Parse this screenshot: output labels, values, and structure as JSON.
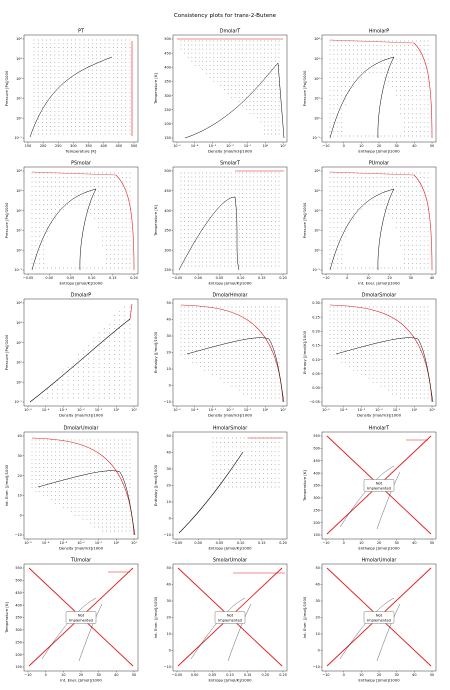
{
  "suptitle": "Consistency plots for trans-2-Butene",
  "chart_data": [
    {
      "type": "scatter",
      "title": "PT",
      "xlabel": "Temperature [K]",
      "ylabel": "Pressure [Pa]/1000",
      "xticks": [
        "150",
        "200",
        "250",
        "300",
        "350",
        "400",
        "450",
        "500"
      ],
      "yticks": [
        "10⁻¹",
        "10⁰",
        "10¹",
        "10²",
        "10³",
        "10⁴"
      ],
      "not_implemented": false
    },
    {
      "type": "scatter",
      "title": "DmolarT",
      "xlabel": "Density [mol/m3]/1000",
      "ylabel": "Temperature [K]",
      "xticks": [
        "10⁻⁵",
        "10⁻⁴",
        "10⁻³",
        "10⁻²",
        "10⁻¹",
        "10⁰",
        "10¹"
      ],
      "yticks": [
        "150",
        "200",
        "250",
        "300",
        "350",
        "400",
        "450",
        "500"
      ],
      "not_implemented": false
    },
    {
      "type": "scatter",
      "title": "HmolarP",
      "xlabel": "Enthalpy [J/mol]/1000",
      "ylabel": "Pressure [Pa]/1000",
      "xticks": [
        "−10",
        "0",
        "10",
        "20",
        "30",
        "40",
        "50"
      ],
      "yticks": [
        "10⁻¹",
        "10⁰",
        "10¹",
        "10²",
        "10³",
        "10⁴"
      ],
      "not_implemented": false
    },
    {
      "type": "scatter",
      "title": "PSmolar",
      "xlabel": "Entropy [J/mol/K]/1000",
      "ylabel": "Pressure [Pa]/1000",
      "xticks": [
        "−0.05",
        "0.00",
        "0.05",
        "0.10",
        "0.15",
        "0.20"
      ],
      "yticks": [
        "10⁻¹",
        "10⁰",
        "10¹",
        "10²",
        "10³",
        "10⁴"
      ],
      "not_implemented": false
    },
    {
      "type": "scatter",
      "title": "SmolarT",
      "xlabel": "Entropy [J/mol/K]/1000",
      "ylabel": "Temperature [K]",
      "xticks": [
        "−0.05",
        "0.00",
        "0.05",
        "0.10",
        "0.15",
        "0.20"
      ],
      "yticks": [
        "250",
        "300",
        "350",
        "400",
        "450",
        "500"
      ],
      "not_implemented": false
    },
    {
      "type": "scatter",
      "title": "PUmolar",
      "xlabel": "Int. Ener. [J/mol]/1000",
      "ylabel": "Pressure [Pa]/1000",
      "xticks": [
        "−10",
        "0",
        "10",
        "20",
        "30",
        "40"
      ],
      "yticks": [
        "10⁻¹",
        "10⁰",
        "10¹",
        "10²",
        "10³",
        "10⁴"
      ],
      "not_implemented": false
    },
    {
      "type": "scatter",
      "title": "DmolarP",
      "xlabel": "Density [mol/m3]/1000",
      "ylabel": "Pressure [Pa]/1000",
      "xticks": [
        "10⁻⁵",
        "10⁻⁴",
        "10⁻³",
        "10⁻²",
        "10⁻¹",
        "10⁰",
        "10¹"
      ],
      "yticks": [
        "10⁻¹",
        "10⁰",
        "10¹",
        "10²",
        "10³",
        "10⁴"
      ],
      "not_implemented": false
    },
    {
      "type": "scatter",
      "title": "DmolarHmolar",
      "xlabel": "Density [mol/m3]/1000",
      "ylabel": "Enthalpy [J/mol]/1000",
      "xticks": [
        "10⁻⁵",
        "10⁻⁴",
        "10⁻³",
        "10⁻²",
        "10⁻¹",
        "10⁰",
        "10¹"
      ],
      "yticks": [
        "−10",
        "0",
        "10",
        "20",
        "30",
        "40",
        "50"
      ],
      "not_implemented": false
    },
    {
      "type": "scatter",
      "title": "DmolarSmolar",
      "xlabel": "Density [mol/m3]/1000",
      "ylabel": "Entropy [J/mol/K]/1000",
      "xticks": [
        "10⁻⁵",
        "10⁻⁴",
        "10⁻³",
        "10⁻²",
        "10⁻¹",
        "10⁰",
        "10¹"
      ],
      "yticks": [
        "−0.05",
        "0.00",
        "0.05",
        "0.10",
        "0.15",
        "0.20",
        "0.25",
        "0.30"
      ],
      "not_implemented": false
    },
    {
      "type": "scatter",
      "title": "DmolarUmolar",
      "xlabel": "Density [mol/m3]/1000",
      "ylabel": "Int. Ener. [J/mol]/1000",
      "xticks": [
        "10⁻⁵",
        "10⁻⁴",
        "10⁻³",
        "10⁻²",
        "10⁻¹",
        "10⁰",
        "10¹"
      ],
      "yticks": [
        "−10",
        "0",
        "10",
        "20",
        "30",
        "40"
      ],
      "not_implemented": false
    },
    {
      "type": "scatter",
      "title": "HmolarSmolar",
      "xlabel": "Entropy [J/mol/K]/1000",
      "ylabel": "Enthalpy [J/mol]/1000",
      "xticks": [
        "−0.05",
        "0.00",
        "0.05",
        "0.10",
        "0.15",
        "0.20"
      ],
      "yticks": [
        "−10",
        "0",
        "10",
        "20",
        "30",
        "40",
        "50"
      ],
      "not_implemented": false
    },
    {
      "type": "scatter",
      "title": "HmolarT",
      "xlabel": "Enthalpy [J/mol]/1000",
      "ylabel": "Temperature [K]",
      "xticks": [
        "−10",
        "0",
        "10",
        "20",
        "30",
        "40",
        "50"
      ],
      "yticks": [
        "150",
        "200",
        "250",
        "300",
        "350",
        "400",
        "450",
        "500",
        "550"
      ],
      "not_implemented": true
    },
    {
      "type": "scatter",
      "title": "TUmolar",
      "xlabel": "Int. Ener. [J/mol]/1000",
      "ylabel": "Temperature [K]",
      "xticks": [
        "−10",
        "0",
        "10",
        "20",
        "30",
        "40",
        "50"
      ],
      "yticks": [
        "150",
        "200",
        "250",
        "300",
        "350",
        "400",
        "450",
        "500",
        "550"
      ],
      "not_implemented": true
    },
    {
      "type": "scatter",
      "title": "SmolarUmolar",
      "xlabel": "Entropy [J/mol/K]/1000",
      "ylabel": "Int. Ener. [J/mol]/1000",
      "xticks": [
        "−0.05",
        "0.00",
        "0.05",
        "0.10",
        "0.15",
        "0.20",
        "0.25"
      ],
      "yticks": [
        "−10",
        "0",
        "10",
        "20",
        "30",
        "40",
        "50"
      ],
      "not_implemented": true
    },
    {
      "type": "scatter",
      "title": "HmolarUmolar",
      "xlabel": "Enthalpy [J/mol]/1000",
      "ylabel": "Int. Ener. [J/mol]/1000",
      "xticks": [
        "−10",
        "0",
        "10",
        "20",
        "30",
        "40",
        "50"
      ],
      "yticks": [
        "−10",
        "0",
        "10",
        "20",
        "30",
        "40",
        "50"
      ],
      "not_implemented": true
    }
  ],
  "not_implemented_text": [
    "Not",
    "Implemented"
  ],
  "colors": {
    "frame": "#000000",
    "red": "#e31a1c",
    "dots": "#333333"
  }
}
